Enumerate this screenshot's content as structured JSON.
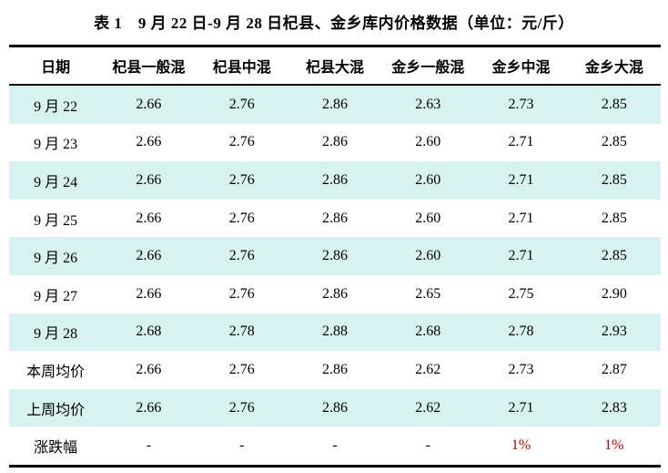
{
  "page": {
    "title": "表 1　9 月 22 日-9 月 28 日杞县、金乡库内价格数据（单位：元/斤）"
  },
  "colors": {
    "stripe": "#d7f2ef",
    "red": "#c00000",
    "text": "#000000",
    "rule": "#000000"
  },
  "table": {
    "headers": [
      "日期",
      "杞县一般混",
      "杞县中混",
      "杞县大混",
      "金乡一般混",
      "金乡中混",
      "金乡大混"
    ],
    "rows": [
      {
        "label": "9 月 22",
        "values": [
          "2.66",
          "2.76",
          "2.86",
          "2.63",
          "2.73",
          "2.85"
        ],
        "striped": true,
        "red_indices": []
      },
      {
        "label": "9 月 23",
        "values": [
          "2.66",
          "2.76",
          "2.86",
          "2.60",
          "2.71",
          "2.85"
        ],
        "striped": false,
        "red_indices": []
      },
      {
        "label": "9 月 24",
        "values": [
          "2.66",
          "2.76",
          "2.86",
          "2.60",
          "2.71",
          "2.85"
        ],
        "striped": true,
        "red_indices": []
      },
      {
        "label": "9 月 25",
        "values": [
          "2.66",
          "2.76",
          "2.86",
          "2.60",
          "2.71",
          "2.85"
        ],
        "striped": false,
        "red_indices": []
      },
      {
        "label": "9 月 26",
        "values": [
          "2.66",
          "2.76",
          "2.86",
          "2.60",
          "2.71",
          "2.85"
        ],
        "striped": true,
        "red_indices": []
      },
      {
        "label": "9 月 27",
        "values": [
          "2.66",
          "2.76",
          "2.86",
          "2.65",
          "2.75",
          "2.90"
        ],
        "striped": false,
        "red_indices": []
      },
      {
        "label": "9 月 28",
        "values": [
          "2.68",
          "2.78",
          "2.88",
          "2.68",
          "2.78",
          "2.93"
        ],
        "striped": true,
        "red_indices": []
      },
      {
        "label": "本周均价",
        "values": [
          "2.66",
          "2.76",
          "2.86",
          "2.62",
          "2.73",
          "2.87"
        ],
        "striped": false,
        "red_indices": []
      },
      {
        "label": "上周均价",
        "values": [
          "2.66",
          "2.76",
          "2.86",
          "2.62",
          "2.71",
          "2.83"
        ],
        "striped": true,
        "red_indices": []
      },
      {
        "label": "涨跌幅",
        "values": [
          "-",
          "-",
          "-",
          "-",
          "1%",
          "1%"
        ],
        "striped": false,
        "red_indices": [
          4,
          5
        ]
      }
    ]
  }
}
